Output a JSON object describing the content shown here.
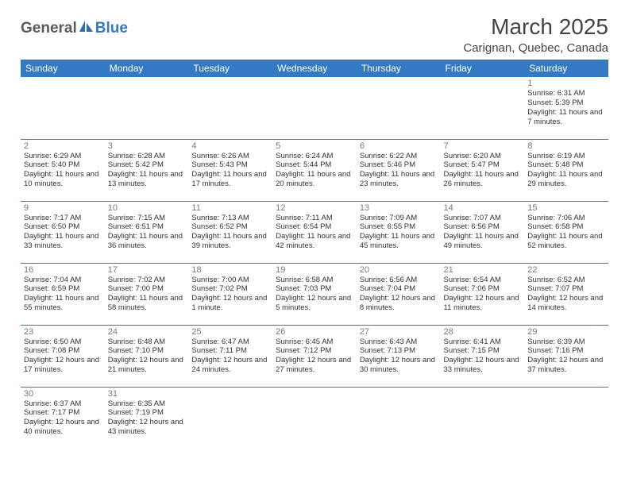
{
  "logo": {
    "text1": "General",
    "text2": "Blue"
  },
  "title": "March 2025",
  "subtitle": "Carignan, Quebec, Canada",
  "colors": {
    "header_bg": "#3479c4",
    "header_fg": "#ffffff",
    "border": "#3479c4",
    "daynum": "#7a7a7a",
    "text": "#333333"
  },
  "days_of_week": [
    "Sunday",
    "Monday",
    "Tuesday",
    "Wednesday",
    "Thursday",
    "Friday",
    "Saturday"
  ],
  "cells": [
    {
      "n": "",
      "sr": "",
      "ss": "",
      "dl": ""
    },
    {
      "n": "",
      "sr": "",
      "ss": "",
      "dl": ""
    },
    {
      "n": "",
      "sr": "",
      "ss": "",
      "dl": ""
    },
    {
      "n": "",
      "sr": "",
      "ss": "",
      "dl": ""
    },
    {
      "n": "",
      "sr": "",
      "ss": "",
      "dl": ""
    },
    {
      "n": "",
      "sr": "",
      "ss": "",
      "dl": ""
    },
    {
      "n": "1",
      "sr": "Sunrise: 6:31 AM",
      "ss": "Sunset: 5:39 PM",
      "dl": "Daylight: 11 hours and 7 minutes."
    },
    {
      "n": "2",
      "sr": "Sunrise: 6:29 AM",
      "ss": "Sunset: 5:40 PM",
      "dl": "Daylight: 11 hours and 10 minutes."
    },
    {
      "n": "3",
      "sr": "Sunrise: 6:28 AM",
      "ss": "Sunset: 5:42 PM",
      "dl": "Daylight: 11 hours and 13 minutes."
    },
    {
      "n": "4",
      "sr": "Sunrise: 6:26 AM",
      "ss": "Sunset: 5:43 PM",
      "dl": "Daylight: 11 hours and 17 minutes."
    },
    {
      "n": "5",
      "sr": "Sunrise: 6:24 AM",
      "ss": "Sunset: 5:44 PM",
      "dl": "Daylight: 11 hours and 20 minutes."
    },
    {
      "n": "6",
      "sr": "Sunrise: 6:22 AM",
      "ss": "Sunset: 5:46 PM",
      "dl": "Daylight: 11 hours and 23 minutes."
    },
    {
      "n": "7",
      "sr": "Sunrise: 6:20 AM",
      "ss": "Sunset: 5:47 PM",
      "dl": "Daylight: 11 hours and 26 minutes."
    },
    {
      "n": "8",
      "sr": "Sunrise: 6:19 AM",
      "ss": "Sunset: 5:48 PM",
      "dl": "Daylight: 11 hours and 29 minutes."
    },
    {
      "n": "9",
      "sr": "Sunrise: 7:17 AM",
      "ss": "Sunset: 6:50 PM",
      "dl": "Daylight: 11 hours and 33 minutes."
    },
    {
      "n": "10",
      "sr": "Sunrise: 7:15 AM",
      "ss": "Sunset: 6:51 PM",
      "dl": "Daylight: 11 hours and 36 minutes."
    },
    {
      "n": "11",
      "sr": "Sunrise: 7:13 AM",
      "ss": "Sunset: 6:52 PM",
      "dl": "Daylight: 11 hours and 39 minutes."
    },
    {
      "n": "12",
      "sr": "Sunrise: 7:11 AM",
      "ss": "Sunset: 6:54 PM",
      "dl": "Daylight: 11 hours and 42 minutes."
    },
    {
      "n": "13",
      "sr": "Sunrise: 7:09 AM",
      "ss": "Sunset: 6:55 PM",
      "dl": "Daylight: 11 hours and 45 minutes."
    },
    {
      "n": "14",
      "sr": "Sunrise: 7:07 AM",
      "ss": "Sunset: 6:56 PM",
      "dl": "Daylight: 11 hours and 49 minutes."
    },
    {
      "n": "15",
      "sr": "Sunrise: 7:06 AM",
      "ss": "Sunset: 6:58 PM",
      "dl": "Daylight: 11 hours and 52 minutes."
    },
    {
      "n": "16",
      "sr": "Sunrise: 7:04 AM",
      "ss": "Sunset: 6:59 PM",
      "dl": "Daylight: 11 hours and 55 minutes."
    },
    {
      "n": "17",
      "sr": "Sunrise: 7:02 AM",
      "ss": "Sunset: 7:00 PM",
      "dl": "Daylight: 11 hours and 58 minutes."
    },
    {
      "n": "18",
      "sr": "Sunrise: 7:00 AM",
      "ss": "Sunset: 7:02 PM",
      "dl": "Daylight: 12 hours and 1 minute."
    },
    {
      "n": "19",
      "sr": "Sunrise: 6:58 AM",
      "ss": "Sunset: 7:03 PM",
      "dl": "Daylight: 12 hours and 5 minutes."
    },
    {
      "n": "20",
      "sr": "Sunrise: 6:56 AM",
      "ss": "Sunset: 7:04 PM",
      "dl": "Daylight: 12 hours and 8 minutes."
    },
    {
      "n": "21",
      "sr": "Sunrise: 6:54 AM",
      "ss": "Sunset: 7:06 PM",
      "dl": "Daylight: 12 hours and 11 minutes."
    },
    {
      "n": "22",
      "sr": "Sunrise: 6:52 AM",
      "ss": "Sunset: 7:07 PM",
      "dl": "Daylight: 12 hours and 14 minutes."
    },
    {
      "n": "23",
      "sr": "Sunrise: 6:50 AM",
      "ss": "Sunset: 7:08 PM",
      "dl": "Daylight: 12 hours and 17 minutes."
    },
    {
      "n": "24",
      "sr": "Sunrise: 6:48 AM",
      "ss": "Sunset: 7:10 PM",
      "dl": "Daylight: 12 hours and 21 minutes."
    },
    {
      "n": "25",
      "sr": "Sunrise: 6:47 AM",
      "ss": "Sunset: 7:11 PM",
      "dl": "Daylight: 12 hours and 24 minutes."
    },
    {
      "n": "26",
      "sr": "Sunrise: 6:45 AM",
      "ss": "Sunset: 7:12 PM",
      "dl": "Daylight: 12 hours and 27 minutes."
    },
    {
      "n": "27",
      "sr": "Sunrise: 6:43 AM",
      "ss": "Sunset: 7:13 PM",
      "dl": "Daylight: 12 hours and 30 minutes."
    },
    {
      "n": "28",
      "sr": "Sunrise: 6:41 AM",
      "ss": "Sunset: 7:15 PM",
      "dl": "Daylight: 12 hours and 33 minutes."
    },
    {
      "n": "29",
      "sr": "Sunrise: 6:39 AM",
      "ss": "Sunset: 7:16 PM",
      "dl": "Daylight: 12 hours and 37 minutes."
    },
    {
      "n": "30",
      "sr": "Sunrise: 6:37 AM",
      "ss": "Sunset: 7:17 PM",
      "dl": "Daylight: 12 hours and 40 minutes."
    },
    {
      "n": "31",
      "sr": "Sunrise: 6:35 AM",
      "ss": "Sunset: 7:19 PM",
      "dl": "Daylight: 12 hours and 43 minutes."
    },
    {
      "n": "",
      "sr": "",
      "ss": "",
      "dl": ""
    },
    {
      "n": "",
      "sr": "",
      "ss": "",
      "dl": ""
    },
    {
      "n": "",
      "sr": "",
      "ss": "",
      "dl": ""
    },
    {
      "n": "",
      "sr": "",
      "ss": "",
      "dl": ""
    },
    {
      "n": "",
      "sr": "",
      "ss": "",
      "dl": ""
    }
  ]
}
